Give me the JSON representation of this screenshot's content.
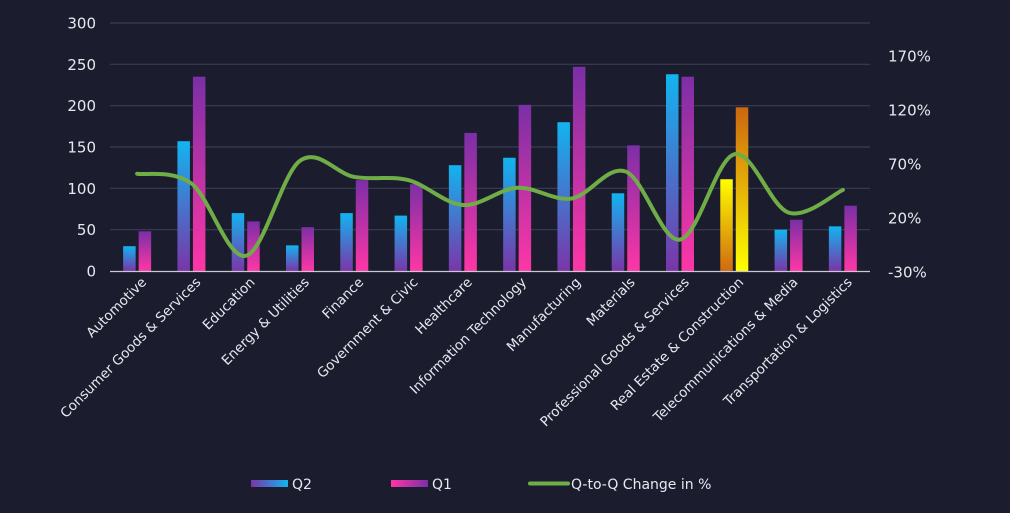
{
  "chart_data": {
    "type": "bar",
    "title": "",
    "xlabel": "",
    "ylabel": "",
    "ylim": [
      0,
      300
    ],
    "y_ticks": [
      "0",
      "50",
      "100",
      "150",
      "200",
      "250",
      "300"
    ],
    "y2lim": [
      -30,
      170
    ],
    "y2_ticks": [
      "-30%",
      "20%",
      "70%",
      "120%",
      "170%"
    ],
    "grid": true,
    "legend_position": "bottom",
    "categories": [
      "Automotive",
      "Consumer Goods & Services",
      "Education",
      "Energy & Utilities",
      "Finance",
      "Government & Civic",
      "Healthcare",
      "Information Technology",
      "Manufacturing",
      "Materials",
      "Professional Goods & Services",
      "Real Estate & Construction",
      "Telecommunications & Media",
      "Transportation & Logistics"
    ],
    "series": [
      {
        "name": "Q2",
        "type": "bar",
        "axis": "left",
        "values": [
          30,
          157,
          70,
          31,
          70,
          67,
          128,
          137,
          180,
          94,
          238,
          111,
          50,
          54
        ]
      },
      {
        "name": "Q1",
        "type": "bar",
        "axis": "left",
        "values": [
          48,
          235,
          60,
          53,
          110,
          105,
          167,
          201,
          247,
          152,
          235,
          198,
          62,
          79
        ]
      },
      {
        "name": "Q-to-Q Change in %",
        "type": "line",
        "axis": "right",
        "values": [
          61,
          52,
          -15,
          73,
          58,
          55,
          32,
          48,
          38,
          63,
          0,
          79,
          25,
          46
        ]
      }
    ],
    "highlight_category": "Real Estate & Construction",
    "colors": {
      "background": "#1b1d2f",
      "grid": "#3a3d52",
      "axis": "#c8c8d0",
      "q2_top": "#12b4f0",
      "q2_bottom": "#7a35a8",
      "q1_top": "#7b2fa6",
      "q1_bottom": "#ff36a6",
      "highlight_q2_top": "#ffff00",
      "highlight_q2_bottom": "#d06a10",
      "highlight_q1_top": "#cc6610",
      "highlight_q1_bottom": "#ffff00",
      "line": "#70ad47"
    }
  }
}
